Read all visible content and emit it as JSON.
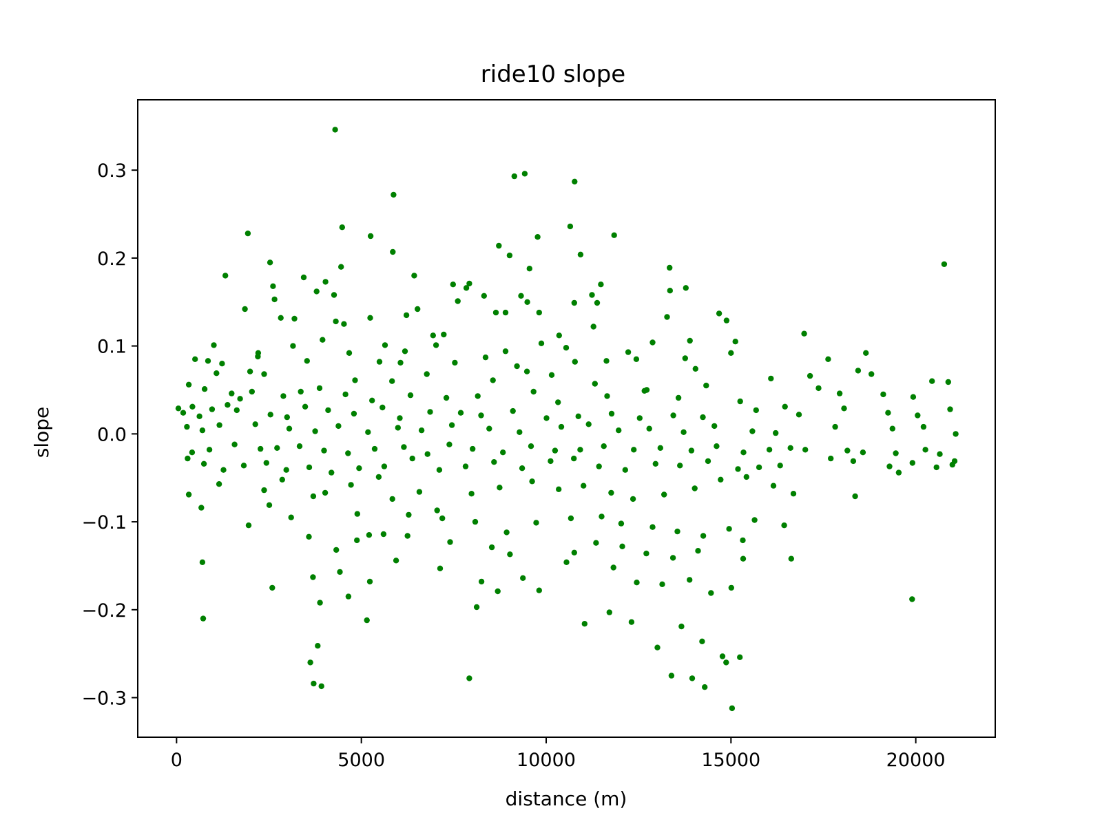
{
  "chart_data": {
    "type": "scatter",
    "title": "ride10 slope",
    "xlabel": "distance (m)",
    "ylabel": "slope",
    "xlim": [
      -1050,
      22150
    ],
    "ylim": [
      -0.345,
      0.38
    ],
    "xticks": [
      0,
      5000,
      10000,
      15000,
      20000
    ],
    "xtick_labels": [
      "0",
      "5000",
      "10000",
      "15000",
      "20000"
    ],
    "yticks": [
      -0.3,
      -0.2,
      -0.1,
      0.0,
      0.1,
      0.2,
      0.3
    ],
    "ytick_labels": [
      "−0.3",
      "−0.2",
      "−0.1",
      "0.0",
      "0.1",
      "0.2",
      "0.3"
    ],
    "grid": false,
    "legend": "none",
    "marker_color": "#008000",
    "points": [
      [
        4290,
        0.346
      ],
      [
        9140,
        0.293
      ],
      [
        9420,
        0.296
      ],
      [
        10770,
        0.287
      ],
      [
        5870,
        0.272
      ],
      [
        4480,
        0.235
      ],
      [
        5250,
        0.225
      ],
      [
        1930,
        0.228
      ],
      [
        10650,
        0.236
      ],
      [
        9770,
        0.224
      ],
      [
        11840,
        0.226
      ],
      [
        8720,
        0.214
      ],
      [
        9010,
        0.203
      ],
      [
        5850,
        0.207
      ],
      [
        10930,
        0.204
      ],
      [
        2530,
        0.195
      ],
      [
        20770,
        0.193
      ],
      [
        13340,
        0.189
      ],
      [
        4450,
        0.19
      ],
      [
        9550,
        0.188
      ],
      [
        11480,
        0.17
      ],
      [
        3440,
        0.178
      ],
      [
        3790,
        0.162
      ],
      [
        4030,
        0.173
      ],
      [
        7480,
        0.17
      ],
      [
        7920,
        0.171
      ],
      [
        1320,
        0.18
      ],
      [
        6430,
        0.18
      ],
      [
        13780,
        0.166
      ],
      [
        2610,
        0.168
      ],
      [
        7840,
        0.166
      ],
      [
        8320,
        0.157
      ],
      [
        9320,
        0.157
      ],
      [
        13350,
        0.163
      ],
      [
        4260,
        0.158
      ],
      [
        11380,
        0.149
      ],
      [
        2650,
        0.153
      ],
      [
        8900,
        0.138
      ],
      [
        9490,
        0.15
      ],
      [
        10760,
        0.149
      ],
      [
        1850,
        0.142
      ],
      [
        6520,
        0.142
      ],
      [
        7610,
        0.151
      ],
      [
        11240,
        0.158
      ],
      [
        14680,
        0.137
      ],
      [
        2820,
        0.132
      ],
      [
        3190,
        0.131
      ],
      [
        5240,
        0.132
      ],
      [
        6220,
        0.135
      ],
      [
        8640,
        0.138
      ],
      [
        4310,
        0.128
      ],
      [
        9810,
        0.138
      ],
      [
        13270,
        0.133
      ],
      [
        14880,
        0.129
      ],
      [
        10540,
        0.098
      ],
      [
        3950,
        0.107
      ],
      [
        4530,
        0.125
      ],
      [
        6940,
        0.112
      ],
      [
        7230,
        0.113
      ],
      [
        10350,
        0.112
      ],
      [
        11280,
        0.122
      ],
      [
        1010,
        0.101
      ],
      [
        2210,
        0.092
      ],
      [
        3150,
        0.1
      ],
      [
        5640,
        0.101
      ],
      [
        6180,
        0.094
      ],
      [
        7020,
        0.101
      ],
      [
        8900,
        0.094
      ],
      [
        9870,
        0.103
      ],
      [
        12220,
        0.093
      ],
      [
        12880,
        0.104
      ],
      [
        13890,
        0.106
      ],
      [
        15120,
        0.105
      ],
      [
        16980,
        0.114
      ],
      [
        14040,
        0.074
      ],
      [
        500,
        0.085
      ],
      [
        850,
        0.083
      ],
      [
        1230,
        0.08
      ],
      [
        2200,
        0.088
      ],
      [
        3530,
        0.083
      ],
      [
        4670,
        0.092
      ],
      [
        5490,
        0.082
      ],
      [
        6060,
        0.081
      ],
      [
        7530,
        0.081
      ],
      [
        8360,
        0.087
      ],
      [
        9210,
        0.077
      ],
      [
        10780,
        0.082
      ],
      [
        11630,
        0.083
      ],
      [
        12440,
        0.085
      ],
      [
        13760,
        0.086
      ],
      [
        15000,
        0.092
      ],
      [
        17630,
        0.085
      ],
      [
        18650,
        0.092
      ],
      [
        1080,
        0.069
      ],
      [
        1990,
        0.071
      ],
      [
        2370,
        0.068
      ],
      [
        3870,
        0.052
      ],
      [
        4830,
        0.061
      ],
      [
        5830,
        0.06
      ],
      [
        6770,
        0.068
      ],
      [
        8560,
        0.061
      ],
      [
        9480,
        0.071
      ],
      [
        10150,
        0.067
      ],
      [
        11320,
        0.057
      ],
      [
        12660,
        0.049
      ],
      [
        14330,
        0.055
      ],
      [
        16080,
        0.063
      ],
      [
        17140,
        0.066
      ],
      [
        18440,
        0.072
      ],
      [
        18800,
        0.068
      ],
      [
        20440,
        0.06
      ],
      [
        330,
        0.056
      ],
      [
        760,
        0.051
      ],
      [
        1490,
        0.046
      ],
      [
        2040,
        0.048
      ],
      [
        2890,
        0.043
      ],
      [
        3360,
        0.048
      ],
      [
        4570,
        0.045
      ],
      [
        5290,
        0.038
      ],
      [
        6330,
        0.044
      ],
      [
        7300,
        0.041
      ],
      [
        8150,
        0.043
      ],
      [
        9660,
        0.048
      ],
      [
        10320,
        0.036
      ],
      [
        11650,
        0.043
      ],
      [
        12720,
        0.05
      ],
      [
        13580,
        0.041
      ],
      [
        15250,
        0.037
      ],
      [
        16460,
        0.031
      ],
      [
        17370,
        0.052
      ],
      [
        17940,
        0.046
      ],
      [
        19120,
        0.045
      ],
      [
        19930,
        0.042
      ],
      [
        20880,
        0.059
      ],
      [
        50,
        0.029
      ],
      [
        180,
        0.024
      ],
      [
        430,
        0.031
      ],
      [
        620,
        0.02
      ],
      [
        960,
        0.028
      ],
      [
        1380,
        0.033
      ],
      [
        1630,
        0.027
      ],
      [
        1720,
        0.04
      ],
      [
        2540,
        0.022
      ],
      [
        2990,
        0.019
      ],
      [
        3480,
        0.031
      ],
      [
        4100,
        0.027
      ],
      [
        4800,
        0.023
      ],
      [
        5570,
        0.03
      ],
      [
        6040,
        0.018
      ],
      [
        6860,
        0.025
      ],
      [
        7690,
        0.024
      ],
      [
        8240,
        0.021
      ],
      [
        9100,
        0.026
      ],
      [
        10010,
        0.018
      ],
      [
        10870,
        0.02
      ],
      [
        11770,
        0.023
      ],
      [
        12530,
        0.018
      ],
      [
        13440,
        0.021
      ],
      [
        14240,
        0.019
      ],
      [
        15680,
        0.027
      ],
      [
        16840,
        0.022
      ],
      [
        18060,
        0.029
      ],
      [
        19250,
        0.024
      ],
      [
        20050,
        0.021
      ],
      [
        20930,
        0.028
      ],
      [
        280,
        0.008
      ],
      [
        700,
        0.004
      ],
      [
        1160,
        0.01
      ],
      [
        2130,
        0.011
      ],
      [
        3050,
        0.006
      ],
      [
        3750,
        0.003
      ],
      [
        4380,
        0.009
      ],
      [
        5180,
        0.002
      ],
      [
        5990,
        0.007
      ],
      [
        6630,
        0.004
      ],
      [
        7450,
        0.01
      ],
      [
        8460,
        0.006
      ],
      [
        9280,
        0.002
      ],
      [
        10410,
        0.008
      ],
      [
        11150,
        0.011
      ],
      [
        11960,
        0.004
      ],
      [
        12790,
        0.006
      ],
      [
        13720,
        0.002
      ],
      [
        14550,
        0.009
      ],
      [
        15580,
        0.003
      ],
      [
        16210,
        0.001
      ],
      [
        17820,
        0.008
      ],
      [
        19370,
        0.006
      ],
      [
        20210,
        0.008
      ],
      [
        21080,
        0.0
      ],
      [
        420,
        -0.021
      ],
      [
        890,
        -0.018
      ],
      [
        1570,
        -0.012
      ],
      [
        2270,
        -0.017
      ],
      [
        2720,
        -0.016
      ],
      [
        3330,
        -0.014
      ],
      [
        3990,
        -0.019
      ],
      [
        4640,
        -0.022
      ],
      [
        5360,
        -0.017
      ],
      [
        6150,
        -0.015
      ],
      [
        6790,
        -0.023
      ],
      [
        7380,
        -0.012
      ],
      [
        8010,
        -0.017
      ],
      [
        8830,
        -0.021
      ],
      [
        9590,
        -0.014
      ],
      [
        10240,
        -0.019
      ],
      [
        10920,
        -0.018
      ],
      [
        11560,
        -0.014
      ],
      [
        12370,
        -0.018
      ],
      [
        13090,
        -0.016
      ],
      [
        13930,
        -0.019
      ],
      [
        14610,
        -0.014
      ],
      [
        15340,
        -0.021
      ],
      [
        16040,
        -0.018
      ],
      [
        16610,
        -0.016
      ],
      [
        17010,
        -0.018
      ],
      [
        18150,
        -0.019
      ],
      [
        18570,
        -0.021
      ],
      [
        19460,
        -0.022
      ],
      [
        20260,
        -0.018
      ],
      [
        20650,
        -0.023
      ],
      [
        21050,
        -0.031
      ],
      [
        300,
        -0.028
      ],
      [
        740,
        -0.034
      ],
      [
        1270,
        -0.041
      ],
      [
        1820,
        -0.036
      ],
      [
        2430,
        -0.033
      ],
      [
        2970,
        -0.041
      ],
      [
        3590,
        -0.038
      ],
      [
        4190,
        -0.044
      ],
      [
        4940,
        -0.039
      ],
      [
        5620,
        -0.037
      ],
      [
        6380,
        -0.028
      ],
      [
        7110,
        -0.041
      ],
      [
        7820,
        -0.037
      ],
      [
        8590,
        -0.032
      ],
      [
        9350,
        -0.039
      ],
      [
        10120,
        -0.031
      ],
      [
        10750,
        -0.028
      ],
      [
        11430,
        -0.037
      ],
      [
        12140,
        -0.041
      ],
      [
        12960,
        -0.034
      ],
      [
        13620,
        -0.036
      ],
      [
        14380,
        -0.031
      ],
      [
        15190,
        -0.04
      ],
      [
        15760,
        -0.038
      ],
      [
        16330,
        -0.036
      ],
      [
        17700,
        -0.028
      ],
      [
        18310,
        -0.031
      ],
      [
        19290,
        -0.037
      ],
      [
        19910,
        -0.033
      ],
      [
        20560,
        -0.038
      ],
      [
        20990,
        -0.035
      ],
      [
        670,
        -0.084
      ],
      [
        1150,
        -0.057
      ],
      [
        2370,
        -0.064
      ],
      [
        2860,
        -0.052
      ],
      [
        3700,
        -0.071
      ],
      [
        4020,
        -0.067
      ],
      [
        4720,
        -0.058
      ],
      [
        5470,
        -0.049
      ],
      [
        5840,
        -0.074
      ],
      [
        6570,
        -0.066
      ],
      [
        7050,
        -0.087
      ],
      [
        7980,
        -0.068
      ],
      [
        8740,
        -0.061
      ],
      [
        9620,
        -0.054
      ],
      [
        10340,
        -0.063
      ],
      [
        11010,
        -0.059
      ],
      [
        11760,
        -0.067
      ],
      [
        12350,
        -0.074
      ],
      [
        13190,
        -0.069
      ],
      [
        14020,
        -0.062
      ],
      [
        14720,
        -0.052
      ],
      [
        15420,
        -0.049
      ],
      [
        16150,
        -0.059
      ],
      [
        16690,
        -0.068
      ],
      [
        18360,
        -0.071
      ],
      [
        19540,
        -0.044
      ],
      [
        330,
        -0.069
      ],
      [
        2510,
        -0.081
      ],
      [
        3100,
        -0.095
      ],
      [
        4890,
        -0.091
      ],
      [
        5210,
        -0.115
      ],
      [
        6280,
        -0.092
      ],
      [
        7190,
        -0.096
      ],
      [
        8080,
        -0.1
      ],
      [
        8930,
        -0.112
      ],
      [
        9730,
        -0.101
      ],
      [
        10670,
        -0.096
      ],
      [
        11500,
        -0.094
      ],
      [
        12030,
        -0.102
      ],
      [
        12880,
        -0.106
      ],
      [
        13550,
        -0.111
      ],
      [
        14250,
        -0.116
      ],
      [
        14950,
        -0.108
      ],
      [
        15640,
        -0.098
      ],
      [
        16440,
        -0.104
      ],
      [
        1950,
        -0.104
      ],
      [
        3580,
        -0.117
      ],
      [
        4320,
        -0.132
      ],
      [
        4880,
        -0.121
      ],
      [
        5600,
        -0.114
      ],
      [
        6250,
        -0.116
      ],
      [
        7400,
        -0.123
      ],
      [
        8530,
        -0.129
      ],
      [
        9020,
        -0.137
      ],
      [
        10760,
        -0.135
      ],
      [
        11350,
        -0.124
      ],
      [
        12060,
        -0.128
      ],
      [
        12710,
        -0.136
      ],
      [
        13430,
        -0.141
      ],
      [
        14110,
        -0.133
      ],
      [
        15320,
        -0.121
      ],
      [
        16630,
        -0.142
      ],
      [
        700,
        -0.146
      ],
      [
        3690,
        -0.163
      ],
      [
        4420,
        -0.157
      ],
      [
        5230,
        -0.168
      ],
      [
        5940,
        -0.144
      ],
      [
        7130,
        -0.153
      ],
      [
        8250,
        -0.168
      ],
      [
        9370,
        -0.164
      ],
      [
        10550,
        -0.146
      ],
      [
        11820,
        -0.152
      ],
      [
        12450,
        -0.169
      ],
      [
        13140,
        -0.171
      ],
      [
        13880,
        -0.166
      ],
      [
        14460,
        -0.181
      ],
      [
        15010,
        -0.175
      ],
      [
        720,
        -0.21
      ],
      [
        2590,
        -0.175
      ],
      [
        3880,
        -0.192
      ],
      [
        4650,
        -0.185
      ],
      [
        5150,
        -0.212
      ],
      [
        8120,
        -0.197
      ],
      [
        8690,
        -0.179
      ],
      [
        9810,
        -0.178
      ],
      [
        11040,
        -0.216
      ],
      [
        11710,
        -0.203
      ],
      [
        12310,
        -0.214
      ],
      [
        13010,
        -0.243
      ],
      [
        13660,
        -0.219
      ],
      [
        14220,
        -0.236
      ],
      [
        14770,
        -0.253
      ],
      [
        15240,
        -0.254
      ],
      [
        19900,
        -0.188
      ],
      [
        3620,
        -0.26
      ],
      [
        3710,
        -0.284
      ],
      [
        3920,
        -0.287
      ],
      [
        3820,
        -0.241
      ],
      [
        7920,
        -0.278
      ],
      [
        13390,
        -0.275
      ],
      [
        13950,
        -0.278
      ],
      [
        14290,
        -0.288
      ],
      [
        14870,
        -0.26
      ],
      [
        15030,
        -0.312
      ],
      [
        15330,
        -0.142
      ]
    ]
  }
}
